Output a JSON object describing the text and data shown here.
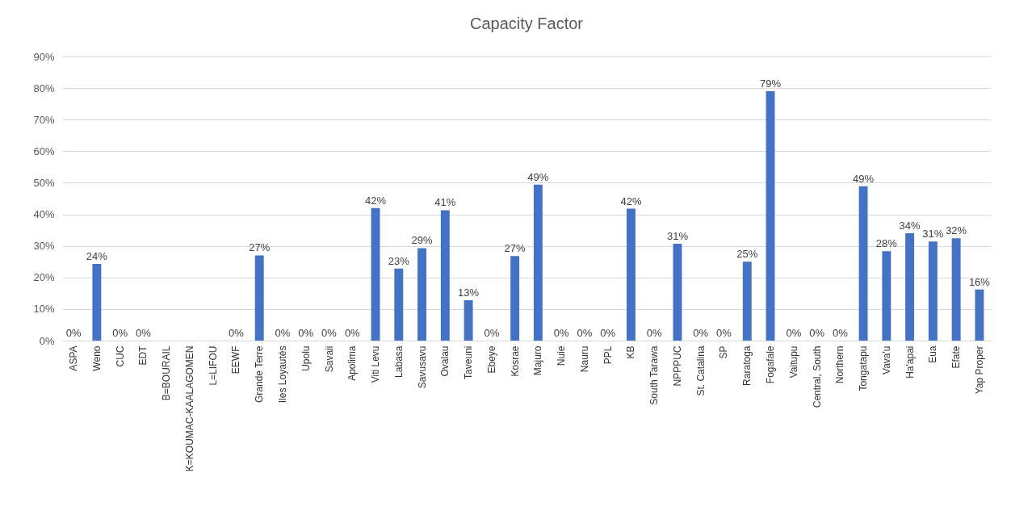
{
  "chart_data": {
    "type": "bar",
    "title": "Capacity Factor",
    "categories": [
      "ASPA",
      "Weno",
      "CUC",
      "EDT",
      "B=BOURAIL",
      "K=KOUMAC-KAALAGOMEN",
      "L=LIFOU",
      "EEWF",
      "Grande Terre",
      "Iles Loyautés",
      "Upolu",
      "Savaii",
      "Apolima",
      "Viti Levu",
      "Labasa",
      "Savusavu",
      "Ovalau",
      "Taveuni",
      "Ebeye",
      "Kosrae",
      "Majuro",
      "Nuie",
      "Nauru",
      "PPL",
      "KB",
      "South Tarawa",
      "NPPPUC",
      "St. Catalina",
      "SP",
      "Raratoga",
      "Fogafale",
      "Vaitupu",
      "Central, South",
      "Northern",
      "Tongatapu",
      "Vava'u",
      "Ha'apai",
      "Eua",
      "Efate",
      "Yap Proper"
    ],
    "values": [
      0,
      24.3,
      0,
      0,
      null,
      null,
      null,
      0,
      27,
      0,
      0,
      0,
      0,
      42,
      22.8,
      29.3,
      41.3,
      12.8,
      0,
      26.8,
      49.4,
      0,
      0,
      0,
      41.8,
      0,
      30.7,
      0,
      0,
      25,
      79,
      0,
      0,
      0,
      48.9,
      28.3,
      34,
      31.4,
      32.4,
      16.2
    ],
    "value_labels": [
      "0%",
      "24%",
      "0%",
      "0%",
      null,
      null,
      null,
      "0%",
      "27%",
      "0%",
      "0%",
      "0%",
      "0%",
      "42%",
      "23%",
      "29%",
      "41%",
      "13%",
      "0%",
      "27%",
      "49%",
      "0%",
      "0%",
      "0%",
      "42%",
      "0%",
      "31%",
      "0%",
      "0%",
      "25%",
      "79%",
      "0%",
      "0%",
      "0%",
      "49%",
      "28%",
      "34%",
      "31%",
      "32%",
      "16%"
    ],
    "color": "#4472c4",
    "ylim": [
      0,
      90
    ],
    "yticks": [
      {
        "value": 0,
        "label": "0%"
      },
      {
        "value": 10,
        "label": "10%"
      },
      {
        "value": 20,
        "label": "20%"
      },
      {
        "value": 30,
        "label": "30%"
      },
      {
        "value": 40,
        "label": "40%"
      },
      {
        "value": 50,
        "label": "50%"
      },
      {
        "value": 60,
        "label": "60%"
      },
      {
        "value": 70,
        "label": "70%"
      },
      {
        "value": 80,
        "label": "80%"
      },
      {
        "value": 90,
        "label": "90%"
      }
    ],
    "grid": "y"
  }
}
